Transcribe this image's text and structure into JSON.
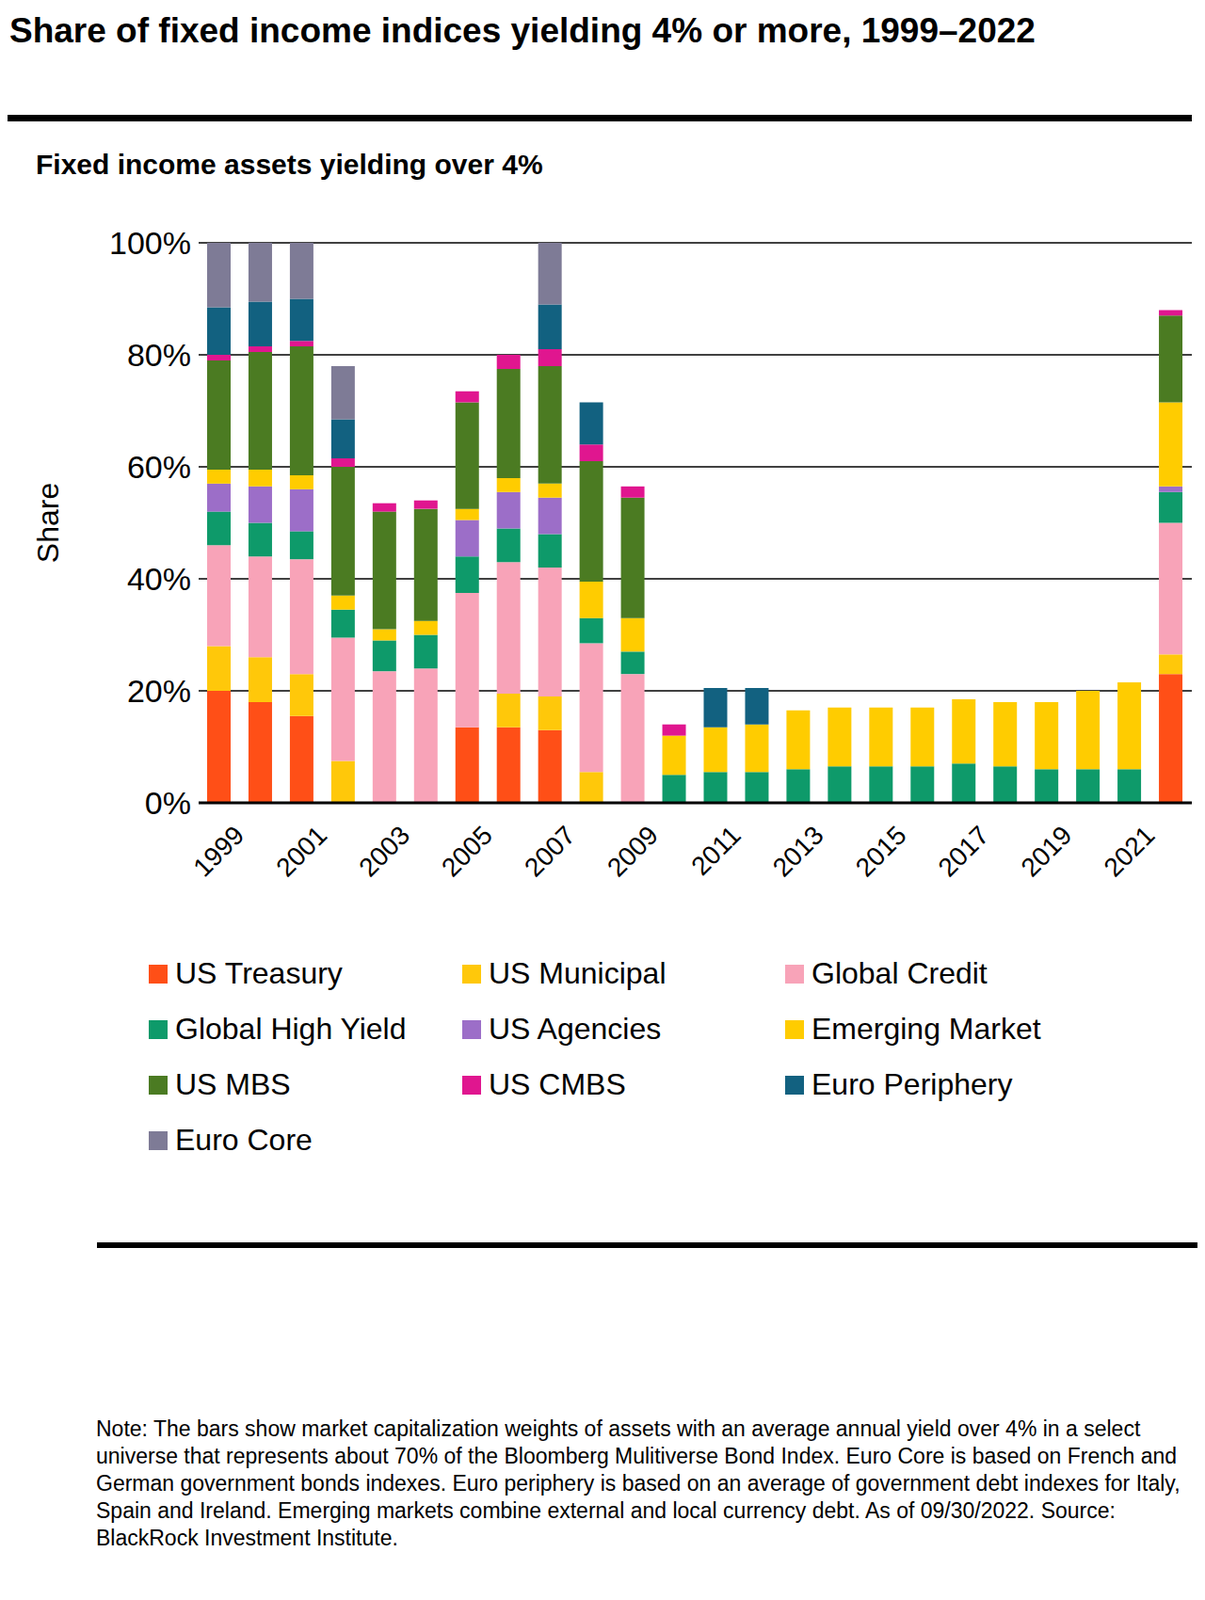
{
  "chart_data": {
    "type": "bar",
    "title": "Share of fixed income indices yielding 4% or more, 1999–2022",
    "subtitle": "Fixed income assets yielding over 4%",
    "y_label": "Share",
    "note": "Note: The bars show market capitalization weights of assets with an average annual yield over 4% in a select universe that represents about 70% of the Bloomberg Mulitiverse Bond Index. Euro Core is based on French and German government bonds indexes. Euro periphery is based on an average of government debt indexes for Italy, Spain and Ireland. Emerging markets combine external and local currency debt. As of 09/30/2022. Source: BlackRock Investment Institute.",
    "stacked": true,
    "grid": true,
    "legend": "bottom",
    "categories": [
      "1999",
      null,
      "2001",
      null,
      "2003",
      null,
      "2005",
      null,
      "2007",
      null,
      "2009",
      null,
      "2011",
      null,
      "2013",
      null,
      "2015",
      null,
      "2017",
      null,
      "2019",
      null,
      "2021",
      null
    ],
    "ylim": [
      0,
      100
    ],
    "yticks": [
      {
        "value": 0,
        "label": "0%"
      },
      {
        "value": 20,
        "label": "20%"
      },
      {
        "value": 40,
        "label": "40%"
      },
      {
        "value": 60,
        "label": "60%"
      },
      {
        "value": 80,
        "label": "80%"
      },
      {
        "value": 100,
        "label": "100%"
      }
    ],
    "series": [
      {
        "name": "US Treasury",
        "color": "#ff4f17",
        "values": [
          20,
          18,
          15.5,
          0,
          0,
          0,
          13.5,
          13.5,
          13,
          0,
          0,
          0,
          0,
          0,
          0,
          0,
          0,
          0,
          0,
          0,
          0,
          0,
          0,
          23
        ]
      },
      {
        "name": "US Municipal",
        "color": "#ffc80a",
        "values": [
          8,
          8,
          7.5,
          7.5,
          0,
          0,
          0,
          6,
          6,
          5.5,
          0,
          0,
          0,
          0,
          0,
          0,
          0,
          0,
          0,
          0,
          0,
          0,
          0,
          3.5
        ]
      },
      {
        "name": "Global Credit",
        "color": "#f8a3b8",
        "values": [
          18,
          18,
          20.5,
          22,
          23.5,
          24,
          24,
          23.5,
          23,
          23,
          23,
          0,
          0,
          0,
          0,
          0,
          0,
          0,
          0,
          0,
          0,
          0,
          0,
          23.5
        ]
      },
      {
        "name": "Global High Yield",
        "color": "#0e9a6a",
        "values": [
          6,
          6,
          5,
          5,
          5.5,
          6,
          6.5,
          6,
          6,
          4.5,
          4,
          5,
          5.5,
          5.5,
          6,
          6.5,
          6.5,
          6.5,
          7,
          6.5,
          6,
          6,
          6,
          5.5
        ]
      },
      {
        "name": "US Agencies",
        "color": "#9c6ec8",
        "values": [
          5,
          6.5,
          7.5,
          0,
          0,
          0,
          6.5,
          6.5,
          6.5,
          0,
          0,
          0,
          0,
          0,
          0,
          0,
          0,
          0,
          0,
          0,
          0,
          0,
          0,
          1
        ]
      },
      {
        "name": "Emerging Market",
        "color": "#ffcc00",
        "values": [
          2.5,
          3,
          2.5,
          2.5,
          2,
          2.5,
          2,
          2.5,
          2.5,
          6.5,
          6,
          7,
          8,
          8.5,
          10.5,
          10.5,
          10.5,
          10.5,
          11.5,
          11.5,
          12,
          14,
          15.5,
          15
        ]
      },
      {
        "name": "US MBS",
        "color": "#4b7b22",
        "values": [
          19.5,
          21,
          23,
          23,
          21,
          20,
          19,
          19.5,
          21,
          21.5,
          21.5,
          0,
          0,
          0,
          0,
          0,
          0,
          0,
          0,
          0,
          0,
          0,
          0,
          15.5
        ]
      },
      {
        "name": "US CMBS",
        "color": "#e0168f",
        "values": [
          1,
          1,
          1,
          1.5,
          1.5,
          1.5,
          2,
          2.5,
          3,
          3,
          2,
          2,
          0,
          0,
          0,
          0,
          0,
          0,
          0,
          0,
          0,
          0,
          0,
          1
        ]
      },
      {
        "name": "Euro Periphery",
        "color": "#126180",
        "values": [
          8.5,
          8,
          7.5,
          7,
          0,
          0,
          0,
          0,
          8,
          7.5,
          0,
          0,
          7,
          6.5,
          0,
          0,
          0,
          0,
          0,
          0,
          0,
          0,
          0,
          0
        ]
      },
      {
        "name": "Euro Core",
        "color": "#7e7b96",
        "values": [
          11.5,
          10.5,
          10,
          9.5,
          0,
          0,
          0,
          0,
          11,
          0,
          0,
          0,
          0,
          0,
          0,
          0,
          0,
          0,
          0,
          0,
          0,
          0,
          0,
          0
        ]
      }
    ]
  }
}
